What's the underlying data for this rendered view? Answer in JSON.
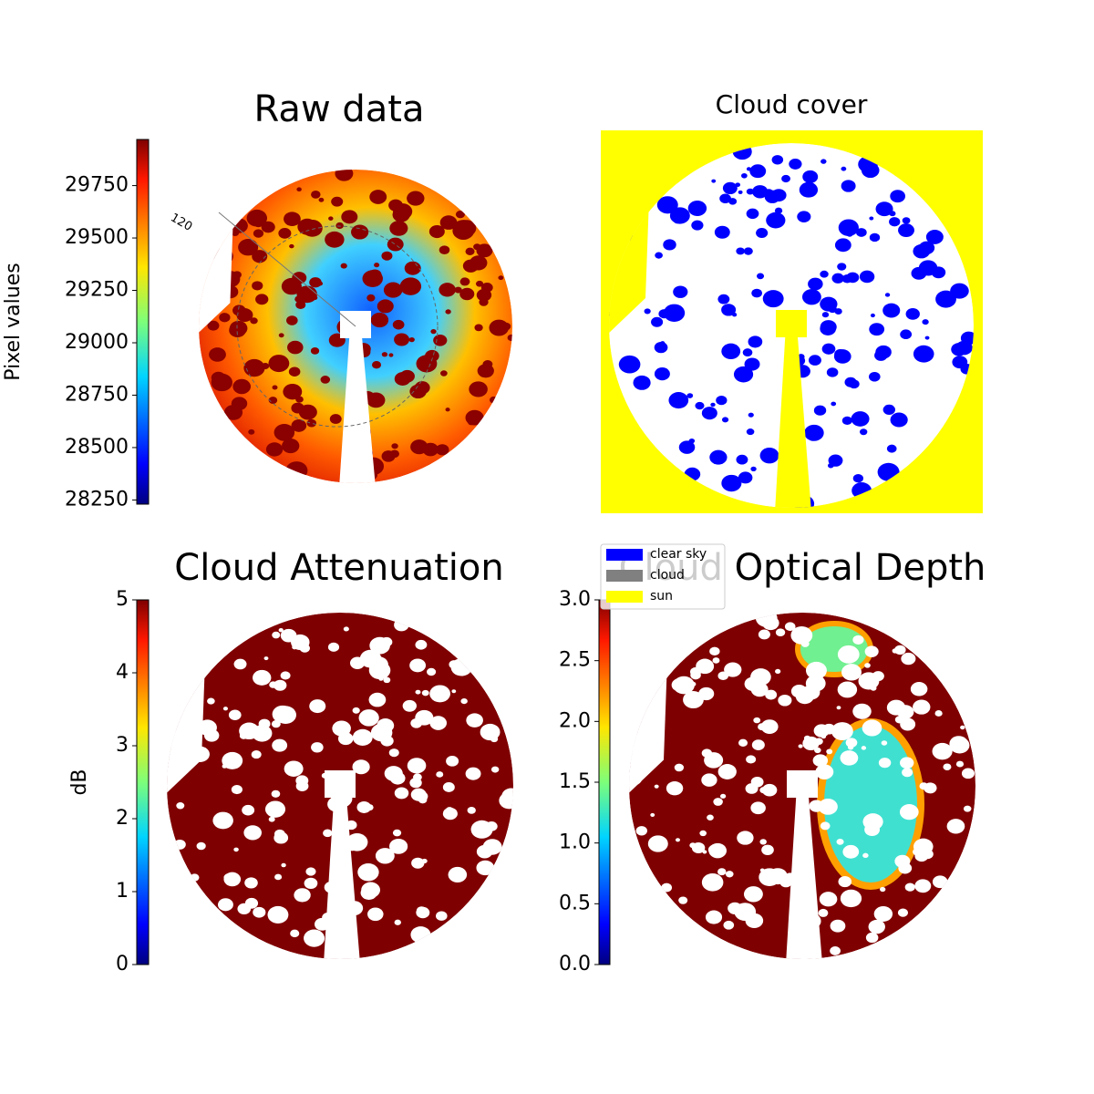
{
  "chart_data": [
    {
      "type": "image",
      "title": "Raw data",
      "colorbar": {
        "label": "Pixel values",
        "lim": [
          28230,
          29970
        ],
        "ticks": [
          28250,
          28500,
          28750,
          29000,
          29250,
          29500,
          29750
        ],
        "colormap": "jet"
      },
      "annotations": [
        "120"
      ]
    },
    {
      "type": "image",
      "title": "Cloud cover",
      "legend": [
        {
          "name": "clear sky",
          "color": "#0000ff"
        },
        {
          "name": "cloud",
          "color": "#808080"
        },
        {
          "name": "sun",
          "color": "#ffff00"
        }
      ]
    },
    {
      "type": "image",
      "title": "Cloud Attenuation",
      "colorbar": {
        "label": "dB",
        "lim": [
          0,
          5
        ],
        "ticks": [
          0,
          1,
          2,
          3,
          4,
          5
        ],
        "colormap": "jet"
      }
    },
    {
      "type": "image",
      "title": "Cloud Optical Depth",
      "colorbar": {
        "lim": [
          0,
          3
        ],
        "ticks": [
          {
            "value": 0,
            "label": "0.0"
          },
          {
            "value": 0.5,
            "label": "0.5"
          },
          {
            "value": 1,
            "label": "1.0"
          },
          {
            "value": 1.5,
            "label": "1.5"
          },
          {
            "value": 2,
            "label": "2.0"
          },
          {
            "value": 2.5,
            "label": "2.5"
          },
          {
            "value": 3,
            "label": "3.0"
          }
        ],
        "colormap": "jet"
      }
    }
  ]
}
